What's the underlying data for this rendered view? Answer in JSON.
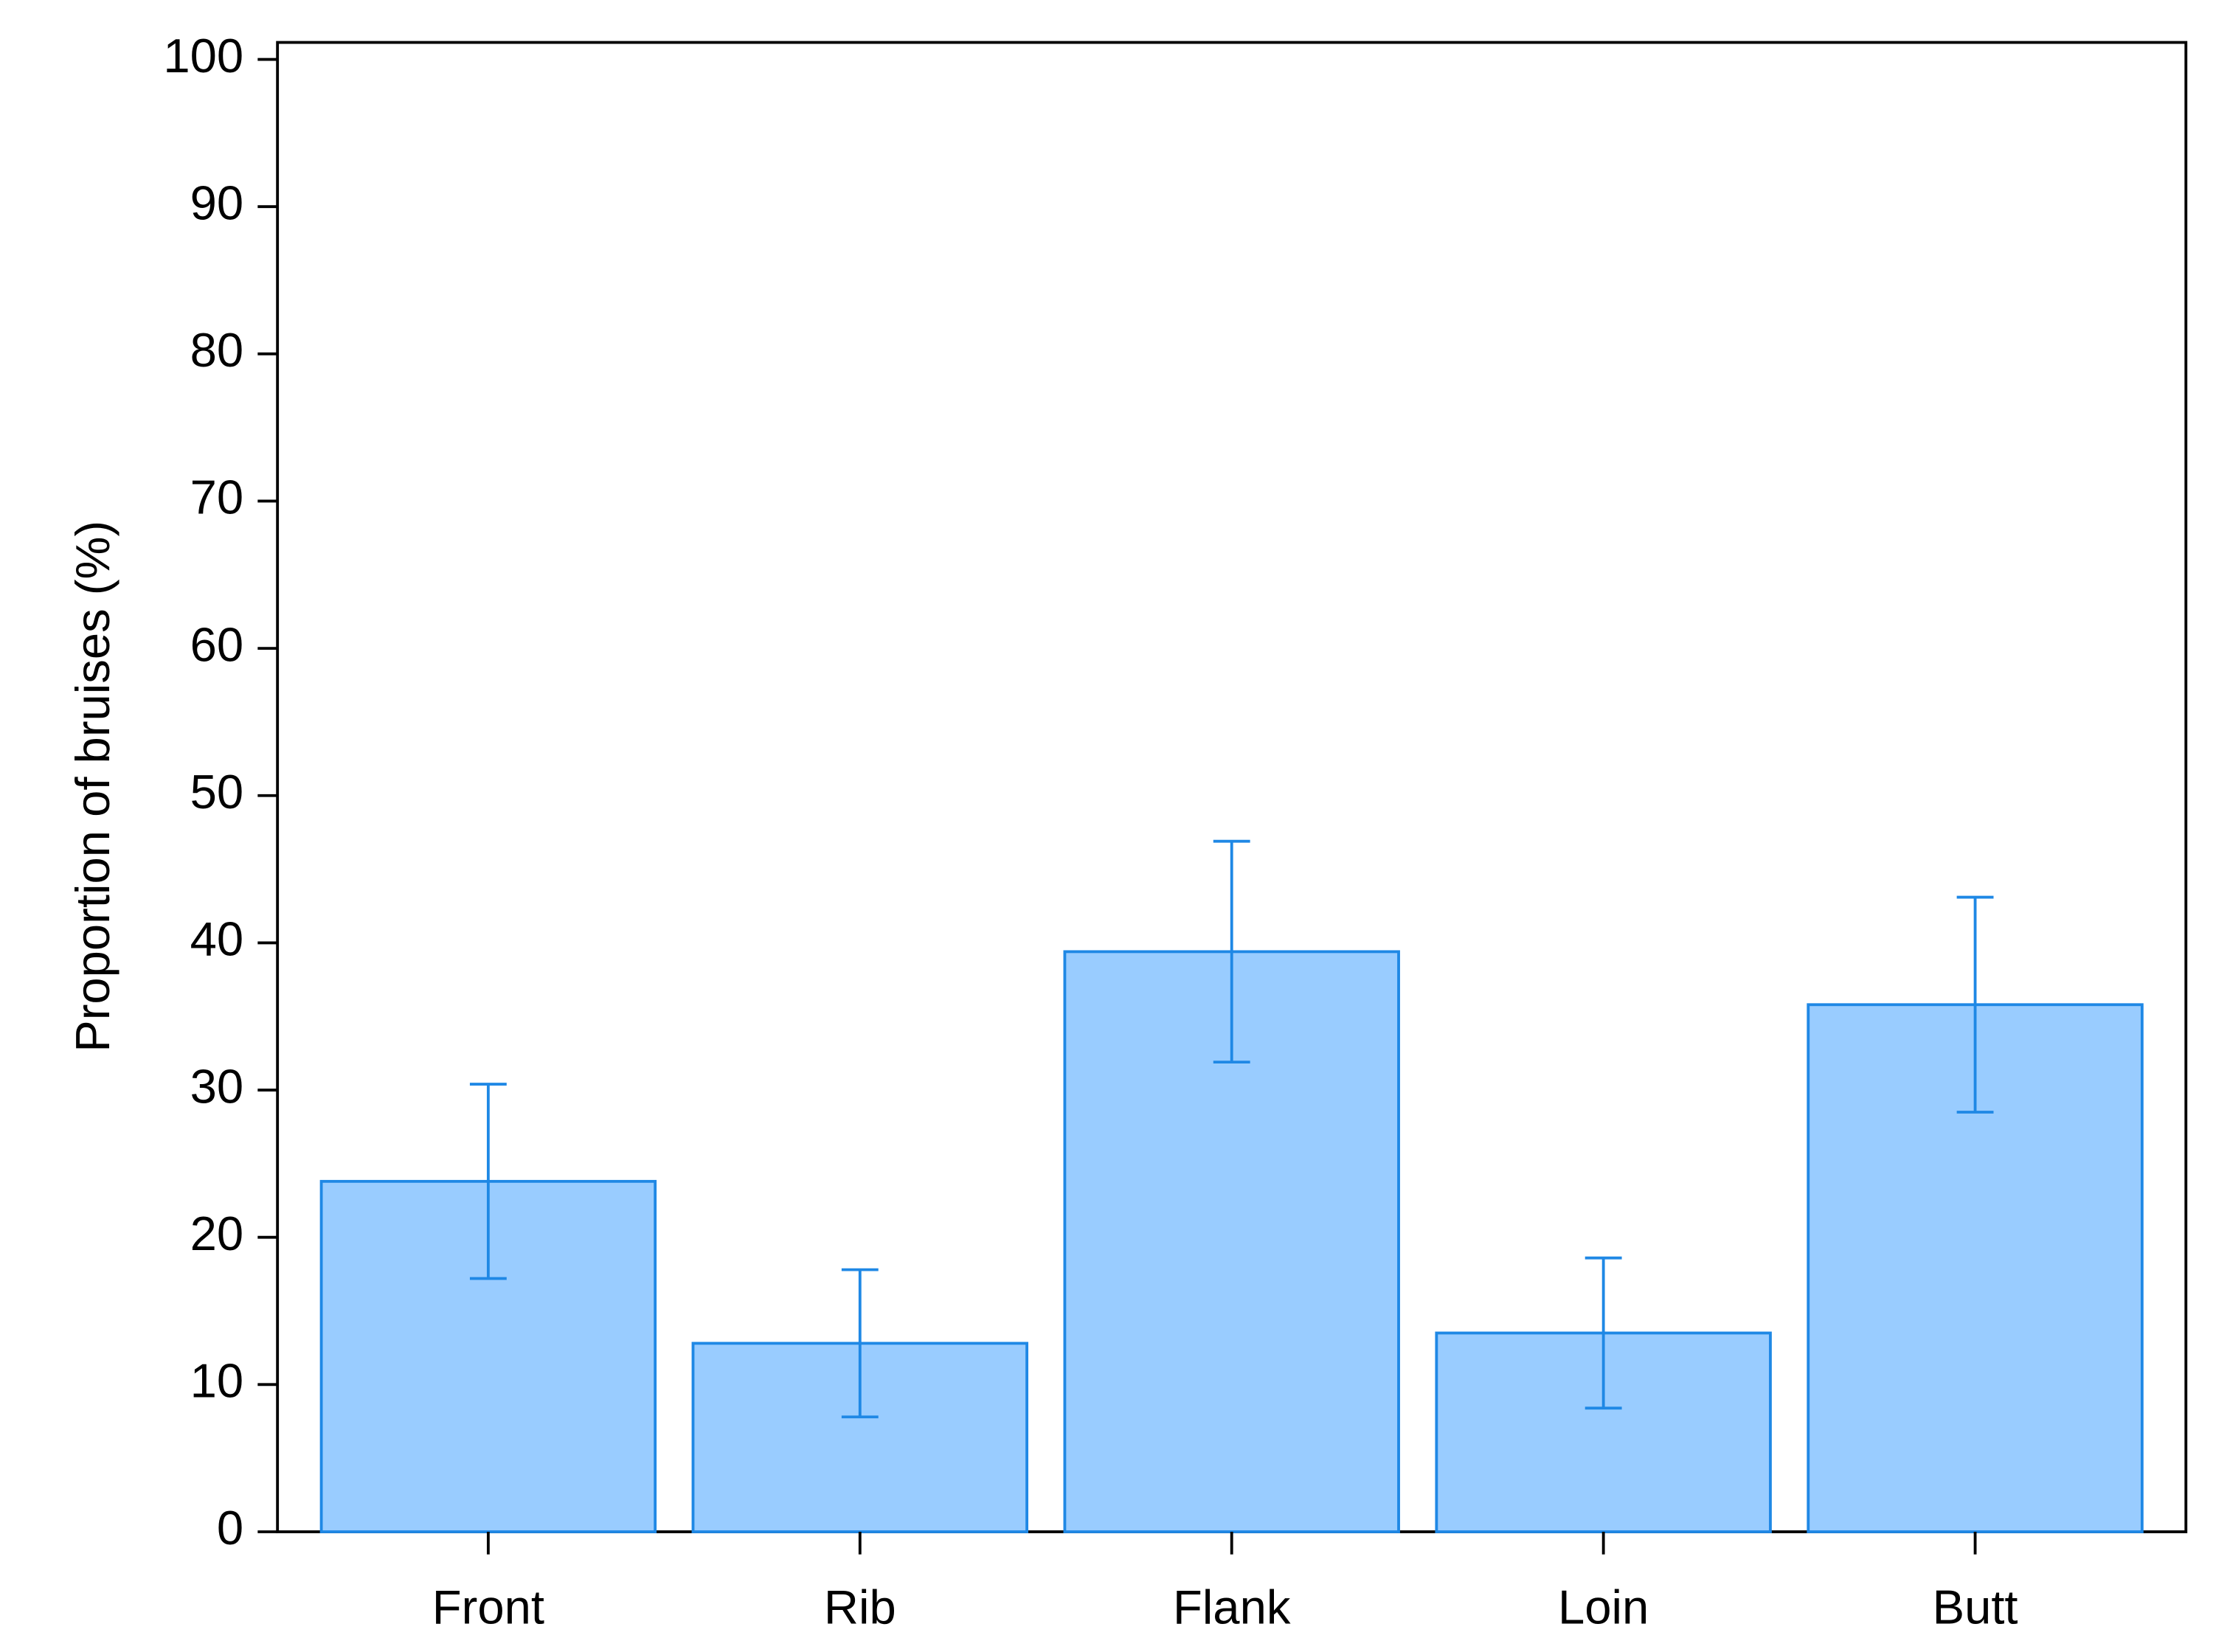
{
  "chart_data": {
    "type": "bar",
    "y_label": "Proportion of bruises (%)",
    "categories": [
      "Front",
      "Rib",
      "Flank",
      "Loin",
      "Butt"
    ],
    "values": [
      23.8,
      12.8,
      39.4,
      13.5,
      35.8
    ],
    "errors": [
      6.6,
      5.0,
      7.5,
      5.1,
      7.3
    ],
    "color": "#99ccff",
    "edge_color": "#1f88e5",
    "ylim": [
      0,
      100
    ],
    "yticks": [
      0,
      10,
      20,
      30,
      40,
      50,
      60,
      70,
      80,
      90,
      100
    ]
  }
}
